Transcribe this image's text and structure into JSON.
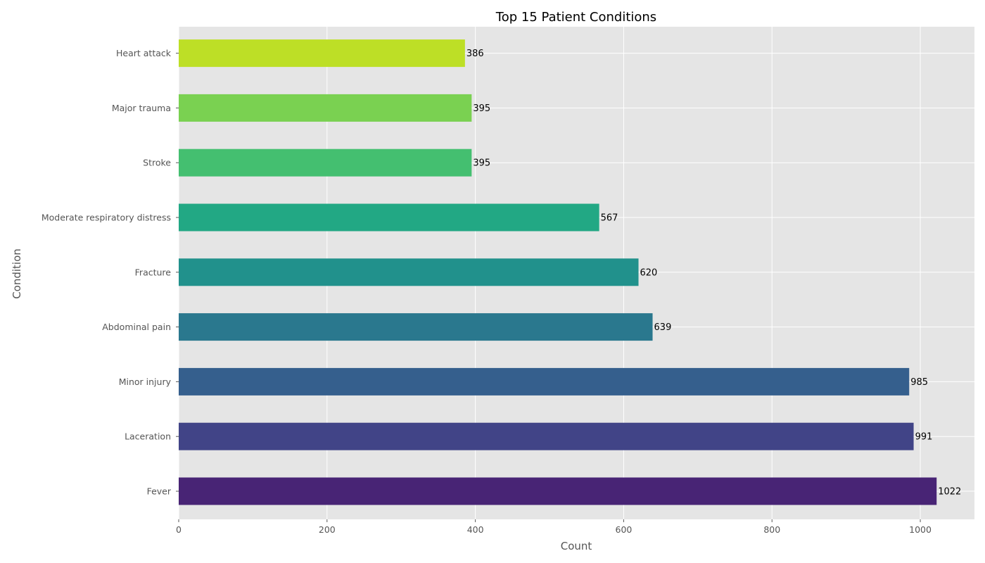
{
  "chart_data": {
    "type": "bar",
    "orientation": "horizontal",
    "title": "Top 15 Patient Conditions",
    "xlabel": "Count",
    "ylabel": "Condition",
    "xlim": [
      0,
      1073
    ],
    "xticks": [
      0,
      200,
      400,
      600,
      800,
      1000
    ],
    "grid": true,
    "categories": [
      "Fever",
      "Laceration",
      "Minor injury",
      "Abdominal pain",
      "Fracture",
      "Moderate respiratory distress",
      "Stroke",
      "Major trauma",
      "Heart attack"
    ],
    "values": [
      1022,
      991,
      985,
      639,
      620,
      567,
      395,
      395,
      386
    ],
    "colors": [
      "#482475",
      "#414487",
      "#355f8d",
      "#2a788e",
      "#21918c",
      "#22a884",
      "#44bf70",
      "#7ad151",
      "#bddf26"
    ]
  },
  "style": {
    "plot_background": "#e5e5e5"
  }
}
